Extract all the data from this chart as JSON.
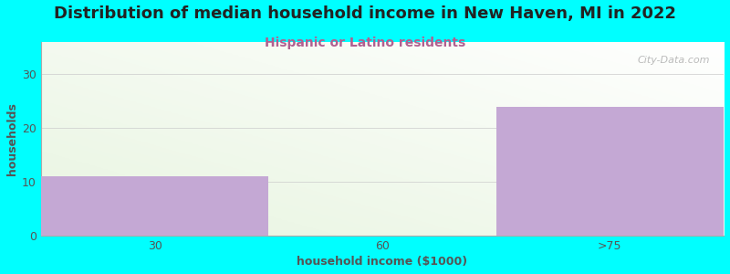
{
  "title": "Distribution of median household income in New Haven, MI in 2022",
  "subtitle": "Hispanic or Latino residents",
  "categories": [
    "30",
    "60",
    ">75"
  ],
  "values": [
    11,
    0,
    24
  ],
  "bar_color": "#c4a8d4",
  "bg_color": "#00ffff",
  "xlabel": "household income ($1000)",
  "ylabel": "households",
  "ylim": [
    0,
    36
  ],
  "yticks": [
    0,
    10,
    20,
    30
  ],
  "title_fontsize": 13,
  "subtitle_fontsize": 10,
  "subtitle_color": "#b06090",
  "axis_label_fontsize": 9,
  "tick_fontsize": 9,
  "watermark": "City-Data.com"
}
